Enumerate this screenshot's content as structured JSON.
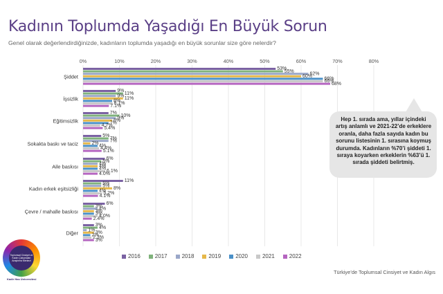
{
  "title": "Kadının Toplumda Yaşadığı En Büyük Sorun",
  "subtitle": "Genel olarak değerlendirdiğinizde, kadınların toplumda yaşadığı en büyük sorunlar size göre nelerdir?",
  "callout_text": "Hep 1. sırada ama, yıllar içindeki artış anlamlı ve 2021-22’de erkeklere oranla, daha fazla sayıda kadın bu sorunu listesinin 1. sırasına koymuş durumda. Kadınların %70’i şiddeti 1. sıraya koyarken erkeklerin %63’ü 1. sırada şiddeti belirtmiş.",
  "logo": {
    "text": "Toplumsal Cinsiyet ve Kadın Çalışmaları Araştırma Merkezi",
    "caption": "Kadir Has Üniversitesi"
  },
  "source": "Türkiye’de Toplumsal Cinsiyet ve Kadın Algıs",
  "chart_data": {
    "type": "bar",
    "orientation": "horizontal",
    "xlim": [
      0,
      80
    ],
    "ticks": [
      "0%",
      "10%",
      "20%",
      "30%",
      "40%",
      "50%",
      "60%",
      "70%",
      "80%"
    ],
    "grid": true,
    "legend_position": "bottom",
    "categories": [
      "Şiddet",
      "İşsizlik",
      "Eğitimsizlik",
      "Sokakta baskı ve taciz",
      "Aile baskısı",
      "Kadın erkek eşitsizliği",
      "Çevre / mahalle baskısı",
      "Diğer"
    ],
    "series": [
      {
        "name": "2016",
        "color": "#7b62a3",
        "values": [
          53,
          9,
          7,
          5,
          6,
          11,
          6,
          3
        ],
        "labels": [
          "53%",
          "9%",
          "7%",
          "5%",
          "6%",
          "11%",
          "6%",
          "3%"
        ]
      },
      {
        "name": "2017",
        "color": "#7fb27b",
        "values": [
          55,
          11,
          10,
          7,
          5,
          5,
          3,
          4
        ],
        "labels": [
          "55%",
          "11%",
          "10%",
          "7%",
          "5%",
          "5%",
          "3%",
          "4%"
        ]
      },
      {
        "name": "2018",
        "color": "#9aa7c9",
        "values": [
          62,
          9,
          9,
          7,
          4,
          5,
          4,
          1
        ],
        "labels": [
          "62%",
          "9%",
          "9%",
          "7%",
          "4%",
          "5%",
          "4%",
          "1%"
        ]
      },
      {
        "name": "2019",
        "color": "#e6b84a",
        "values": [
          60,
          11,
          8,
          2,
          4,
          8,
          3,
          3
        ],
        "labels": [
          "60%",
          "11%",
          "8%",
          "2%",
          "4%",
          "8%",
          "3%",
          "3%"
        ]
      },
      {
        "name": "2020",
        "color": "#4a90c8",
        "values": [
          66,
          8,
          7,
          4,
          4,
          4,
          3,
          2
        ],
        "labels": [
          "66%",
          "8%",
          "7%",
          "4%",
          "4%",
          "4%",
          "3%",
          "2%"
        ]
      },
      {
        "name": "2021",
        "color": "#c9c9c9",
        "values": [
          66,
          8.1,
          4.7,
          4.4,
          6.1,
          5.2,
          4.0,
          2.3
        ],
        "labels": [
          "66%",
          "8.1%",
          "4.7%",
          "4.4%",
          "6.1%",
          "5.2%",
          "4.0%",
          "2.3%"
        ]
      },
      {
        "name": "2022",
        "color": "#b565c0",
        "values": [
          68,
          7.1,
          5.4,
          5.1,
          4.0,
          4.1,
          2.4,
          3
        ],
        "labels": [
          "68%",
          "7.1%",
          "5.4%",
          "5.1%",
          "4.0%",
          "4.1%",
          "2.4%",
          "3%"
        ]
      }
    ]
  }
}
